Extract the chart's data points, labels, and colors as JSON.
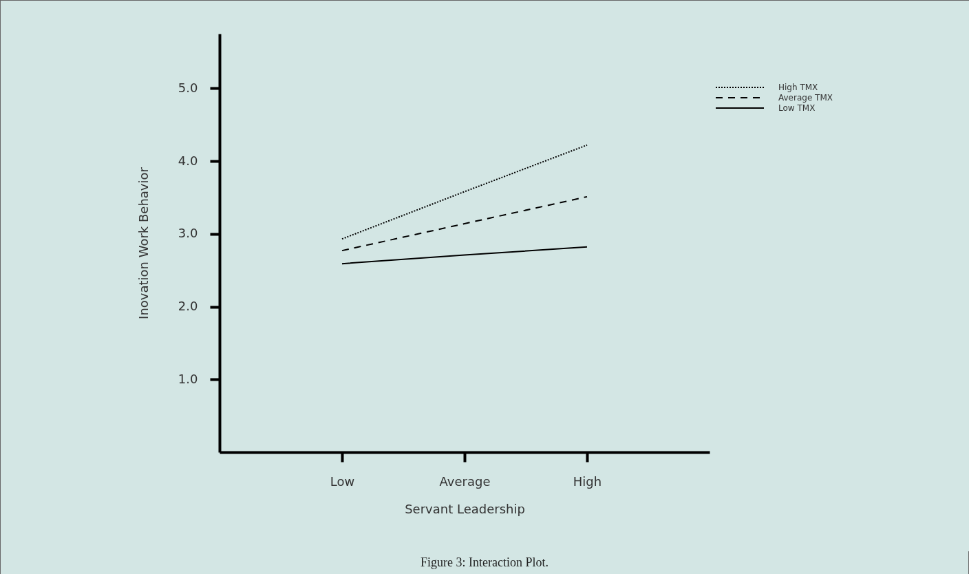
{
  "chart_data": {
    "type": "line",
    "xlabel": "Servant Leadership",
    "ylabel": "Inovation Work Behavior",
    "categories": [
      "Low",
      "Average",
      "High"
    ],
    "series": [
      {
        "name": "High TMX",
        "color": "#000000",
        "line_style": "dotted",
        "values": [
          2.93,
          3.58,
          4.22
        ]
      },
      {
        "name": "Average TMX",
        "color": "#000000",
        "line_style": "dashed",
        "values": [
          2.77,
          3.14,
          3.51
        ]
      },
      {
        "name": "Low TMX",
        "color": "#000000",
        "line_style": "solid",
        "values": [
          2.59,
          2.71,
          2.82
        ]
      }
    ],
    "ylim": [
      0,
      5.75
    ],
    "yticks": [
      {
        "value": 1,
        "label": "1.0"
      },
      {
        "value": 2,
        "label": "2.0"
      },
      {
        "value": 3,
        "label": "3.0"
      },
      {
        "value": 4,
        "label": "4.0"
      },
      {
        "value": 5,
        "label": "5.0"
      }
    ],
    "grid": false,
    "legend": "top right",
    "marker": "none",
    "annotations": [
      "Figure 3: Interaction Plot."
    ]
  }
}
